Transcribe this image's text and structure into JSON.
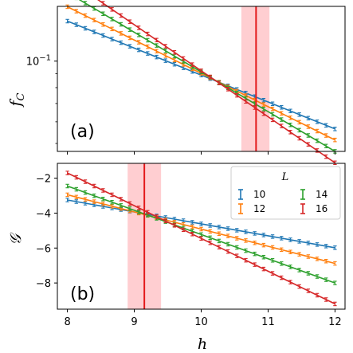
{
  "chart_data": [
    {
      "type": "line",
      "panel_label": "(a)",
      "xlabel": "h",
      "ylabel": "f",
      "ylabel_sub": "C",
      "xlim": [
        7.85,
        12.15
      ],
      "ylim_log10": [
        -1.33,
        -0.8
      ],
      "yscale": "log",
      "yticks": [
        {
          "value": 0.1,
          "label": "10",
          "exp": "−1"
        }
      ],
      "xticks": [
        8,
        9,
        10,
        11,
        12
      ],
      "critical_x": 10.82,
      "critical_band": [
        10.6,
        11.02
      ],
      "series": [
        {
          "name": "10",
          "color": "#1f77b4",
          "x": [
            8,
            12
          ],
          "y": [
            0.14,
            0.0565
          ]
        },
        {
          "name": "12",
          "color": "#ff7f0e",
          "x": [
            8,
            12
          ],
          "y": [
            0.158,
            0.0515
          ]
        },
        {
          "name": "14",
          "color": "#2ca02c",
          "x": [
            8,
            12
          ],
          "y": [
            0.178,
            0.0468
          ]
        },
        {
          "name": "16",
          "color": "#d62728",
          "x": [
            8,
            12
          ],
          "y": [
            0.2,
            0.0425
          ]
        }
      ]
    },
    {
      "type": "line",
      "panel_label": "(b)",
      "xlabel": "h",
      "ylabel": "𝒢",
      "xlim": [
        7.85,
        12.15
      ],
      "ylim": [
        -9.5,
        -1.15
      ],
      "yticks": [
        -2,
        -4,
        -6,
        -8
      ],
      "xticks": [
        8,
        9,
        10,
        11,
        12
      ],
      "critical_x": 9.15,
      "critical_band": [
        8.9,
        9.4
      ],
      "legend_title": "L",
      "legend_placement": "top-right",
      "series": [
        {
          "name": "10",
          "color": "#1f77b4",
          "x": [
            8,
            12
          ],
          "y": [
            -3.25,
            -5.98
          ]
        },
        {
          "name": "12",
          "color": "#ff7f0e",
          "x": [
            8,
            12
          ],
          "y": [
            -2.95,
            -6.88
          ]
        },
        {
          "name": "14",
          "color": "#2ca02c",
          "x": [
            8,
            12
          ],
          "y": [
            -2.45,
            -8.0
          ]
        },
        {
          "name": "16",
          "color": "#d62728",
          "x": [
            8,
            12
          ],
          "y": [
            -1.7,
            -9.2
          ]
        }
      ]
    }
  ],
  "colors": {
    "critical_line": "#e31a1c",
    "critical_band": "#ffb3b8"
  }
}
